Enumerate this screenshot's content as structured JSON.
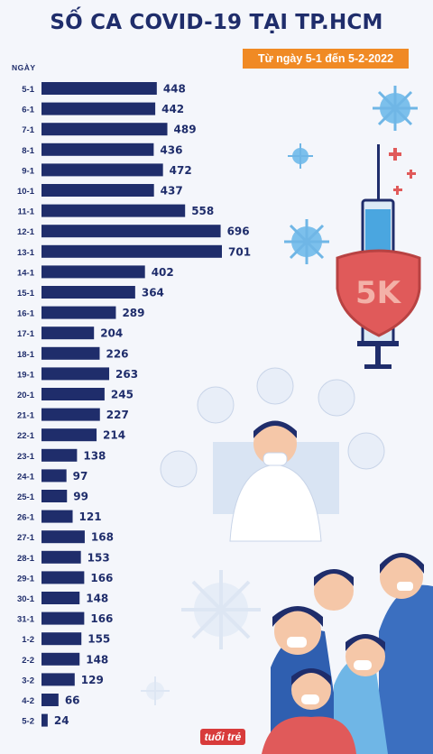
{
  "title": "SỐ CA COVID-19 TẠI TP.HCM",
  "subtitle": "Từ ngày 5-1 đến 5-2-2022",
  "logo_text": "tuổi trẻ",
  "shield_text": "5K",
  "colors": {
    "title": "#1f2d6b",
    "bar": "#1f2d6b",
    "subtitle_bg": "#f08a24",
    "shield": "#e05a5a",
    "virus": "#6fb6e6"
  },
  "chart_data": {
    "type": "bar",
    "orientation": "horizontal",
    "ylabel": "NGÀY",
    "categories": [
      "5-1",
      "6-1",
      "7-1",
      "8-1",
      "9-1",
      "10-1",
      "11-1",
      "12-1",
      "13-1",
      "14-1",
      "15-1",
      "16-1",
      "17-1",
      "18-1",
      "19-1",
      "20-1",
      "21-1",
      "22-1",
      "23-1",
      "24-1",
      "25-1",
      "26-1",
      "27-1",
      "28-1",
      "29-1",
      "30-1",
      "31-1",
      "1-2",
      "2-2",
      "3-2",
      "4-2",
      "5-2"
    ],
    "values": [
      448,
      442,
      489,
      436,
      472,
      437,
      558,
      696,
      701,
      402,
      364,
      289,
      204,
      226,
      263,
      245,
      227,
      214,
      138,
      97,
      99,
      121,
      168,
      153,
      166,
      148,
      166,
      155,
      148,
      129,
      66,
      24
    ],
    "data_labels": true,
    "grid": false
  }
}
